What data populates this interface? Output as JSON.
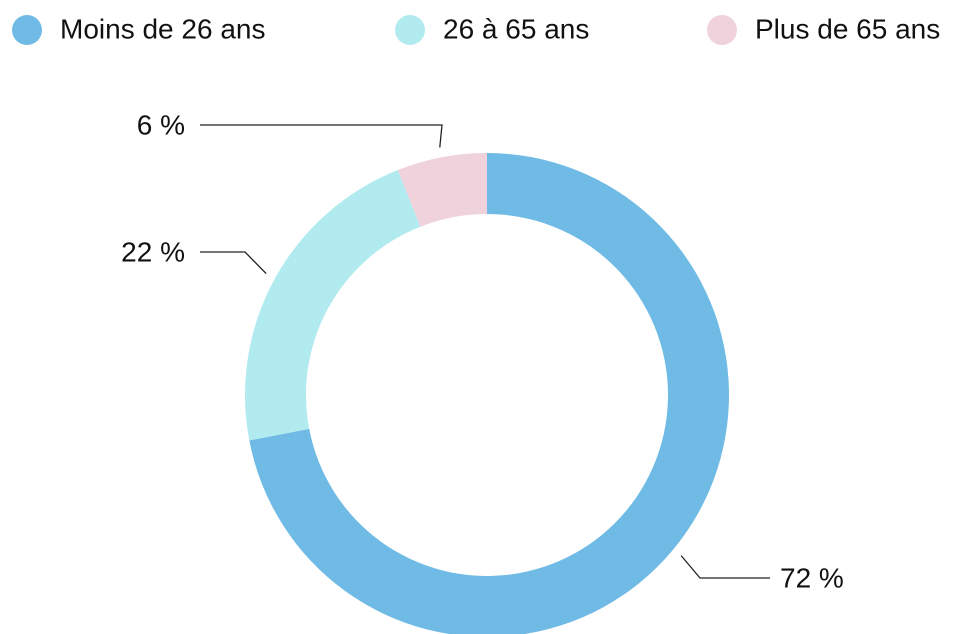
{
  "chart_data": {
    "type": "donut",
    "categories": [
      "Moins de 26 ans",
      "26 à 65 ans",
      "Plus de 65 ans"
    ],
    "values": [
      72,
      22,
      6
    ],
    "value_labels": [
      "72 %",
      "22 %",
      "6 %"
    ],
    "colors": [
      "#6fbbe6",
      "#b2ebef",
      "#f0d2dc"
    ],
    "legend": "top"
  }
}
